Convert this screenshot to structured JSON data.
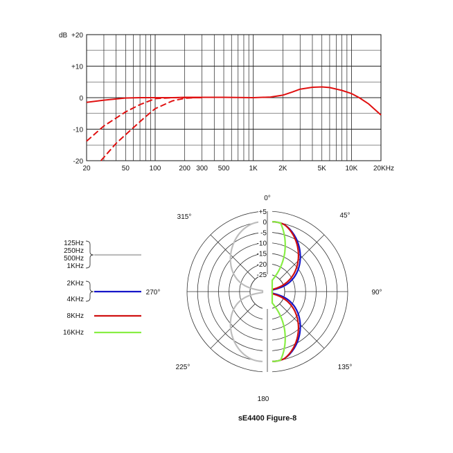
{
  "chart_data": [
    {
      "type": "line",
      "xscale": "log",
      "xlim": [
        20,
        20000
      ],
      "ylim": [
        -20,
        20
      ],
      "ylabel": "dB",
      "x_ticks": [
        20,
        50,
        100,
        200,
        300,
        500,
        1000,
        2000,
        5000,
        10000,
        20000
      ],
      "x_tick_labels": [
        "20",
        "50",
        "100",
        "200",
        "300",
        "500",
        "1K",
        "2K",
        "5K",
        "10K",
        "20KHz"
      ],
      "y_ticks": [
        20,
        10,
        0,
        -10,
        -20
      ],
      "y_tick_labels": [
        "+20",
        "+10",
        "0",
        "-10",
        "-20"
      ],
      "grid": true,
      "line_color": "#e01010",
      "series": [
        {
          "style": "solid",
          "x": [
            20,
            30,
            50,
            70,
            100,
            150,
            200,
            300,
            500,
            1000,
            1500,
            2000,
            2500,
            3000,
            4000,
            5000,
            6000,
            8000,
            10000,
            12000,
            15000,
            20000
          ],
          "y": [
            -1.5,
            -0.8,
            -0.1,
            0,
            0,
            0,
            0.1,
            0.1,
            0.1,
            0,
            0.2,
            0.8,
            1.8,
            2.7,
            3.3,
            3.4,
            3.2,
            2.3,
            1.3,
            0,
            -2,
            -5.5
          ]
        },
        {
          "style": "dashed",
          "x": [
            20,
            30,
            50,
            70,
            100,
            150,
            200,
            300
          ],
          "y": [
            -13.8,
            -9,
            -4.5,
            -2.2,
            -0.3,
            0,
            0,
            0
          ]
        },
        {
          "style": "dashed",
          "x": [
            28,
            40,
            60,
            80,
            100,
            150,
            200,
            250,
            300
          ],
          "y": [
            -20,
            -14.5,
            -9.5,
            -6,
            -3.5,
            -1,
            -0.2,
            0,
            0
          ]
        }
      ]
    },
    {
      "type": "polar",
      "title": "sE4400   Figure-8",
      "rlim": [
        -25,
        5
      ],
      "r_ticks": [
        5,
        0,
        -5,
        -10,
        -15,
        -20,
        -25
      ],
      "r_tick_labels": [
        "+5",
        "0",
        "-5",
        "-10",
        "-15",
        "-20",
        "-25"
      ],
      "angle_labels": [
        "0°",
        "45°",
        "90°",
        "135°",
        "180",
        "225°",
        "270°",
        "315°"
      ],
      "legend": [
        {
          "labels": [
            "125Hz",
            "250Hz",
            "500Hz",
            "1KHz"
          ],
          "color": "#bdbdbd"
        },
        {
          "labels": [
            "2KHz",
            "4KHz"
          ],
          "color": "#1515c8"
        },
        {
          "labels": [
            "8KHz"
          ],
          "color": "#d01010"
        },
        {
          "labels": [
            "16KHz"
          ],
          "color": "#88ee44"
        }
      ],
      "series": [
        {
          "name": "125Hz / 250Hz / 500Hz / 1KHz",
          "color": "#bdbdbd",
          "side": "left",
          "min_angle": 0,
          "drop_per_10deg": 0
        },
        {
          "name": "2KHz / 4KHz",
          "color": "#1515c8",
          "side": "right",
          "min_angle": 15,
          "drop_per_10deg": 0.65
        },
        {
          "name": "8KHz",
          "color": "#d01010",
          "side": "right",
          "min_angle": 15,
          "drop_per_10deg": 1.0
        },
        {
          "name": "16KHz",
          "color": "#88ee44",
          "side": "right",
          "min_angle": 10,
          "drop_per_10deg": 5.5
        }
      ]
    }
  ]
}
